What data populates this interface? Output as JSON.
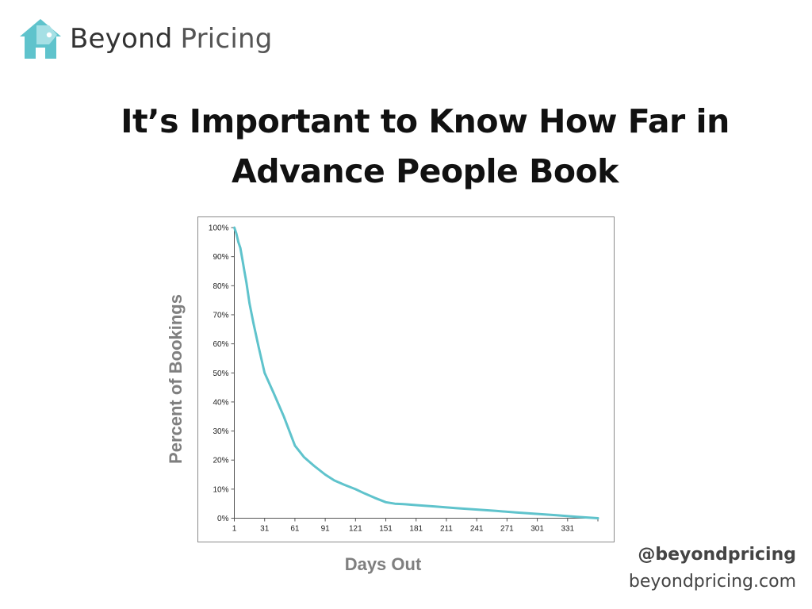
{
  "brand": {
    "name_part1": "Beyond",
    "name_part2": "Pricing",
    "logo_icon": "house-tag-icon",
    "accent_color": "#5fc3cc"
  },
  "slide": {
    "title_line1": "It’s Important to Know How Far in",
    "title_line2": "Advance People Book"
  },
  "footer": {
    "handle": "@beyondpricing",
    "website": "beyondpricing.com"
  },
  "chart_data": {
    "type": "line",
    "title": "",
    "xlabel": "Days Out",
    "ylabel": "Percent of Bookings",
    "xlim": [
      1,
      361
    ],
    "ylim": [
      0,
      1
    ],
    "x_ticks": [
      1,
      31,
      61,
      91,
      121,
      151,
      181,
      211,
      241,
      271,
      301,
      331
    ],
    "x_tick_labels": [
      "1",
      "31",
      "61",
      "91",
      "121",
      "151",
      "181",
      "211",
      "241",
      "271",
      "301",
      "331"
    ],
    "y_ticks": [
      0,
      0.1,
      0.2,
      0.3,
      0.4,
      0.5,
      0.6,
      0.7,
      0.8,
      0.9,
      1.0
    ],
    "y_tick_labels": [
      "0%",
      "10%",
      "20%",
      "30%",
      "40%",
      "50%",
      "60%",
      "70%",
      "80%",
      "90%",
      "100%"
    ],
    "grid": false,
    "legend": "none",
    "series": [
      {
        "color": "#5fc3cc",
        "x": [
          1,
          3,
          5,
          7,
          9,
          11,
          13,
          16,
          20,
          25,
          31,
          40,
          50,
          61,
          70,
          80,
          91,
          100,
          110,
          121,
          130,
          140,
          151,
          160,
          170,
          181,
          200,
          220,
          240,
          260,
          280,
          300,
          320,
          340,
          361
        ],
        "y": [
          1.0,
          0.98,
          0.95,
          0.93,
          0.89,
          0.85,
          0.81,
          0.74,
          0.67,
          0.59,
          0.5,
          0.43,
          0.35,
          0.25,
          0.21,
          0.18,
          0.15,
          0.13,
          0.115,
          0.1,
          0.085,
          0.07,
          0.055,
          0.05,
          0.048,
          0.045,
          0.04,
          0.035,
          0.03,
          0.025,
          0.02,
          0.015,
          0.01,
          0.005,
          0.0
        ]
      }
    ]
  }
}
